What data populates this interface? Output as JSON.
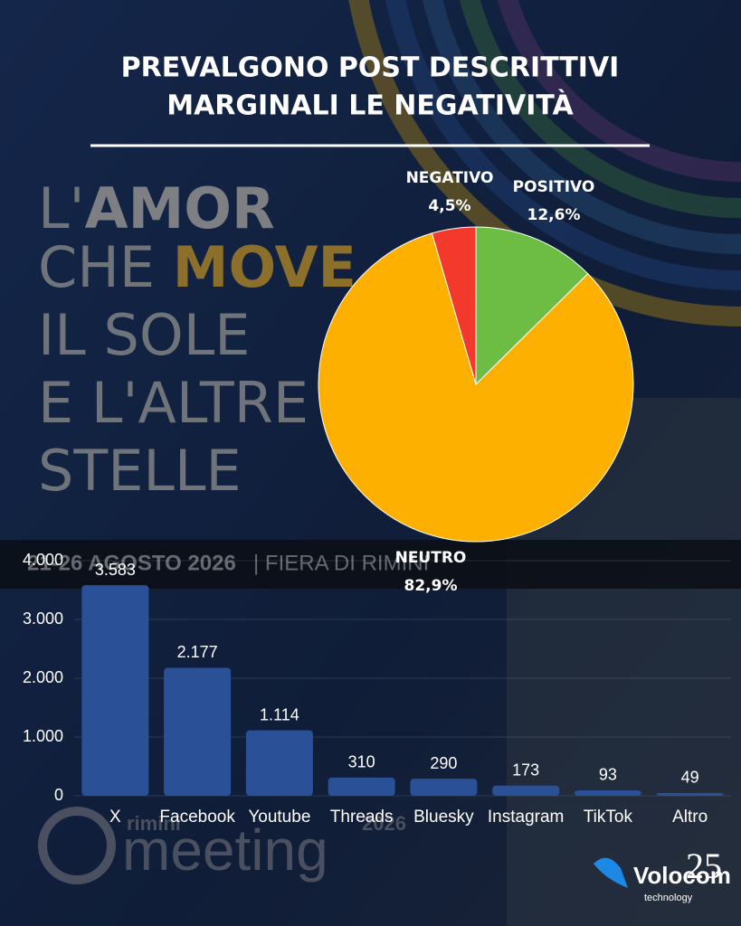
{
  "header": {
    "lines": [
      "PREVALGONO POST DESCRITTIVI",
      "MARGINALI LE NEGATIVITÀ"
    ]
  },
  "poster": {
    "lines": [
      [
        "L'",
        "AMOR"
      ],
      [
        "CHE ",
        "MOVE"
      ],
      [
        "IL SOLE"
      ],
      [
        "E L'ALTRE"
      ],
      [
        "STELLE"
      ]
    ],
    "dates": "21-26 AGOSTO 2026",
    "venue": "| FIERA DI RIMINI",
    "event_city": "rimini",
    "event": "meeting",
    "event_year": "2026"
  },
  "logo": {
    "name": "Volocom",
    "sub": "technology",
    "number": "25"
  },
  "chart_data": [
    {
      "type": "pie",
      "categories": [
        "POSITIVO",
        "NEUTRO",
        "NEGATIVO"
      ],
      "values": [
        12.6,
        82.9,
        4.5
      ],
      "value_labels": [
        "12,6%",
        "82,9%",
        "4,5%"
      ],
      "colors": [
        "#6dbd45",
        "#fdb000",
        "#f2392c"
      ]
    },
    {
      "type": "bar",
      "categories": [
        "X",
        "Facebook",
        "Youtube",
        "Threads",
        "Bluesky",
        "Instagram",
        "TikTok",
        "Altro"
      ],
      "values": [
        3583,
        2177,
        1114,
        310,
        290,
        173,
        93,
        49
      ],
      "value_labels": [
        "3.583",
        "2.177",
        "1.114",
        "310",
        "290",
        "173",
        "93",
        "49"
      ],
      "color": "#2a5098",
      "ylim": [
        0,
        4000
      ],
      "yticks": [
        0,
        {
          "value": 1000,
          "label": "1.000"
        },
        {
          "value": 2000,
          "label": "2.000"
        },
        {
          "value": 3000,
          "label": "3.000"
        },
        {
          "value": 4000,
          "label": "4.000"
        }
      ],
      "grid": true
    }
  ]
}
